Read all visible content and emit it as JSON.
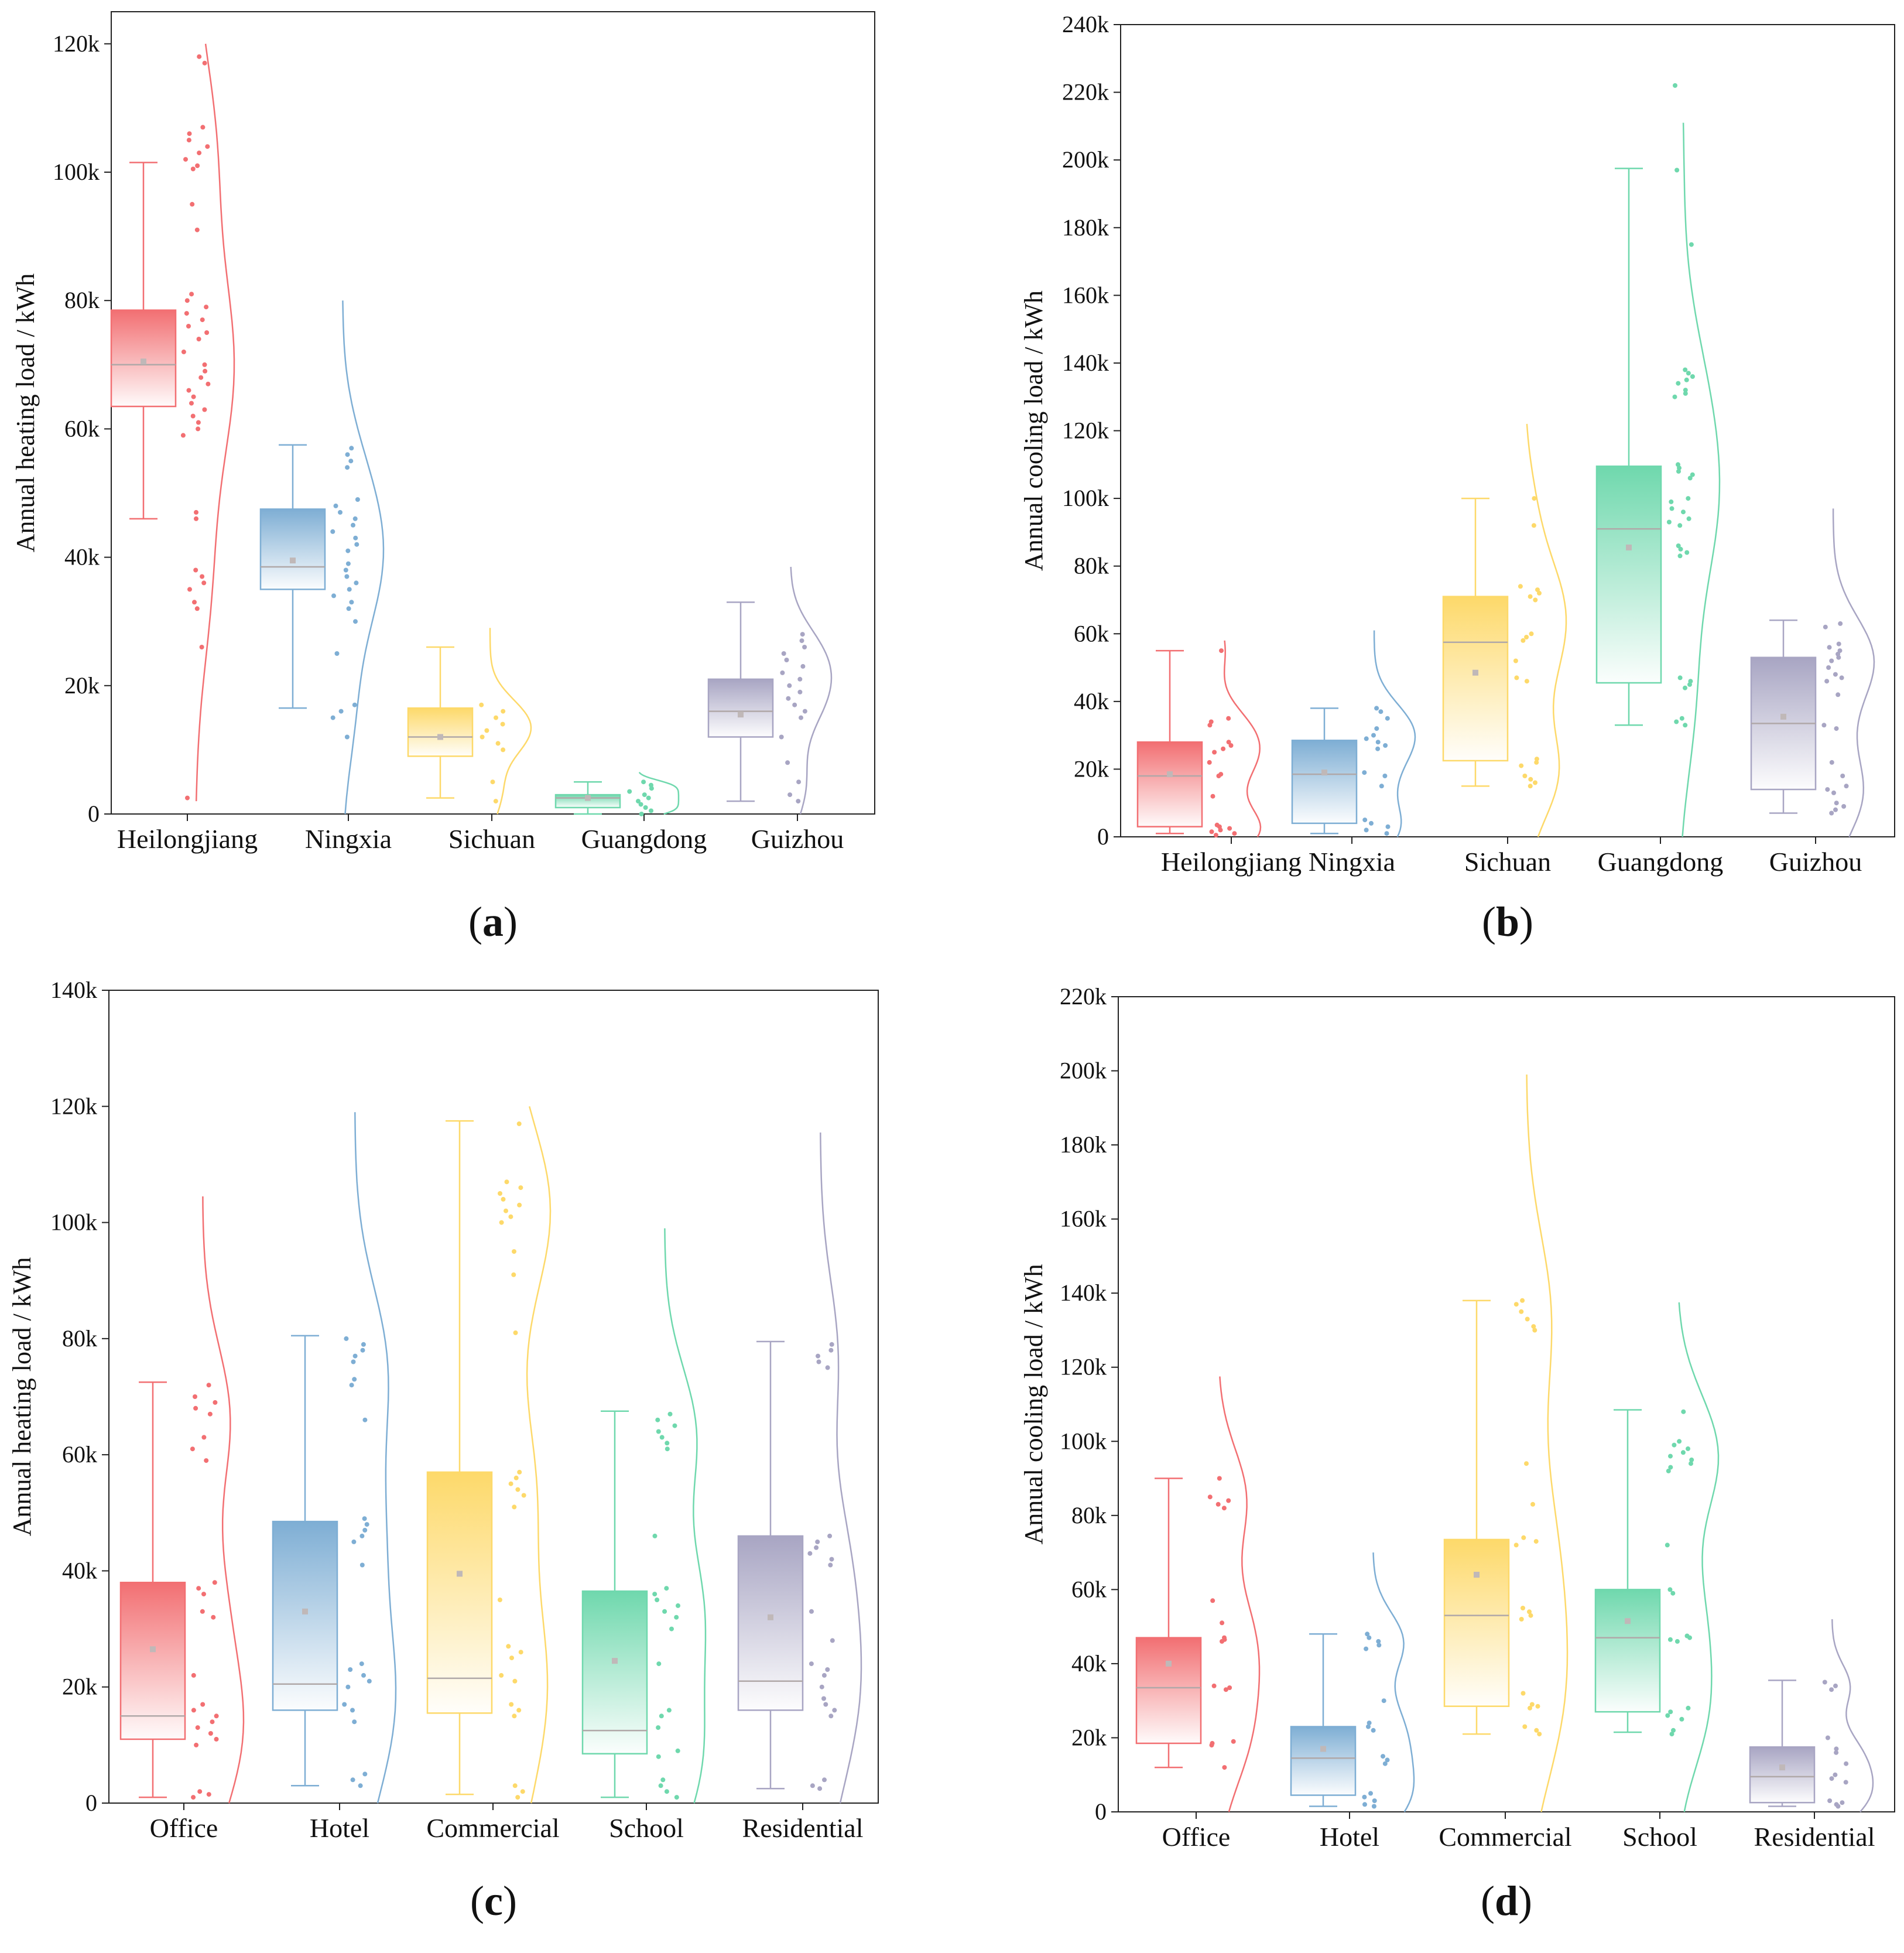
{
  "colors": [
    "#f26f72",
    "#7eaed4",
    "#fdd96a",
    "#6fd8ad",
    "#a8a5c3"
  ],
  "chart_data": [
    {
      "panel": "a",
      "label_prefix": "(",
      "label_letter": "a",
      "label_suffix": ")",
      "type": "raincloud-box",
      "ylabel": "Annual heating load / kWh",
      "ylim": [
        0,
        125000
      ],
      "yticks": [
        0,
        20000,
        40000,
        60000,
        80000,
        100000,
        120000
      ],
      "ytick_labels": [
        "0",
        "20k",
        "40k",
        "60k",
        "80k",
        "100k",
        "120k"
      ],
      "categories": [
        "Heilongjiang",
        "Ningxia",
        "Sichuan",
        "Guangdong",
        "Guizhou"
      ],
      "boxes": [
        {
          "min": 46000,
          "q1": 63500,
          "median": 70000,
          "mean": 70500,
          "q3": 78500,
          "max": 101500,
          "violin_min": 2000,
          "violin_max": 120000
        },
        {
          "min": 16500,
          "q1": 35000,
          "median": 38500,
          "mean": 39500,
          "q3": 47500,
          "max": 57500,
          "violin_min": 0,
          "violin_max": 80000
        },
        {
          "min": 2500,
          "q1": 9000,
          "median": 12000,
          "mean": 12000,
          "q3": 16500,
          "max": 26000,
          "violin_min": 0,
          "violin_max": 29000
        },
        {
          "min": 0,
          "q1": 1000,
          "median": 2500,
          "mean": 2500,
          "q3": 3000,
          "max": 5000,
          "violin_min": 0,
          "violin_max": 6500
        },
        {
          "min": 2000,
          "q1": 12000,
          "median": 16000,
          "mean": 15500,
          "q3": 21000,
          "max": 33000,
          "violin_min": 0,
          "violin_max": 38500
        }
      ],
      "points": [
        [
          2500,
          26000,
          32000,
          33000,
          35000,
          36000,
          37000,
          38000,
          46000,
          47000,
          59000,
          60000,
          61000,
          62000,
          63000,
          64000,
          65000,
          66000,
          67000,
          68000,
          69000,
          70000,
          72000,
          74000,
          75000,
          76000,
          77000,
          78000,
          79000,
          80000,
          81000,
          91000,
          95000,
          100500,
          101000,
          102000,
          103000,
          104000,
          105000,
          106000,
          107000,
          117000,
          118000
        ],
        [
          12000,
          15000,
          16000,
          17000,
          25000,
          30000,
          32000,
          33000,
          34000,
          35000,
          36000,
          37000,
          38000,
          39000,
          41000,
          42000,
          43000,
          44000,
          45000,
          46000,
          47000,
          48000,
          49000,
          54000,
          55000,
          56000,
          57000
        ],
        [
          2000,
          5000,
          10000,
          11000,
          12000,
          13000,
          14000,
          15000,
          16000,
          17000
        ],
        [
          0,
          500,
          1000,
          1500,
          2000,
          2500,
          3000,
          3500,
          4000,
          4500,
          5000
        ],
        [
          2000,
          3000,
          5000,
          8000,
          12000,
          15000,
          16000,
          17000,
          18000,
          19000,
          20000,
          21000,
          22000,
          23000,
          24000,
          25000,
          26000,
          27000,
          28000
        ]
      ]
    },
    {
      "panel": "b",
      "label_prefix": "(",
      "label_letter": "b",
      "label_suffix": ")",
      "type": "raincloud-box",
      "ylabel": "Annual cooling load / kWh",
      "ylim": [
        0,
        240000
      ],
      "yticks": [
        0,
        20000,
        40000,
        60000,
        80000,
        100000,
        120000,
        140000,
        160000,
        180000,
        200000,
        220000,
        240000
      ],
      "ytick_labels": [
        "0",
        "20k",
        "40k",
        "60k",
        "80k",
        "100k",
        "120k",
        "140k",
        "160k",
        "180k",
        "200k",
        "220k",
        "240k"
      ],
      "categories": [
        "Heilongjiang",
        "Ningxia",
        "Sichuan",
        "Guangdong",
        "Guizhou"
      ],
      "boxes": [
        {
          "min": 1000,
          "q1": 3000,
          "median": 18000,
          "mean": 18500,
          "q3": 28000,
          "max": 55000,
          "violin_min": 0,
          "violin_max": 58000
        },
        {
          "min": 1000,
          "q1": 4000,
          "median": 18500,
          "mean": 19000,
          "q3": 28500,
          "max": 38000,
          "violin_min": 0,
          "violin_max": 61000
        },
        {
          "min": 15000,
          "q1": 22500,
          "median": 57500,
          "mean": 48500,
          "q3": 71000,
          "max": 100000,
          "violin_min": 0,
          "violin_max": 122000
        },
        {
          "min": 33000,
          "q1": 45500,
          "median": 91000,
          "mean": 85500,
          "q3": 109500,
          "max": 197500,
          "violin_min": 0,
          "violin_max": 211000
        },
        {
          "min": 7000,
          "q1": 14000,
          "median": 33500,
          "mean": 35500,
          "q3": 53000,
          "max": 64000,
          "violin_min": 0,
          "violin_max": 97000
        }
      ],
      "points": [
        [
          500,
          1000,
          1500,
          2000,
          2500,
          3000,
          3500,
          12000,
          18000,
          18500,
          22000,
          25000,
          26000,
          27000,
          28000,
          33000,
          34000,
          35000,
          55000
        ],
        [
          1000,
          2000,
          3000,
          4000,
          5000,
          15000,
          18000,
          19000,
          26000,
          27000,
          28000,
          29000,
          30000,
          32000,
          35000,
          37000,
          38000
        ],
        [
          15000,
          16000,
          17000,
          18000,
          21000,
          22000,
          23000,
          46000,
          47000,
          52000,
          58000,
          59000,
          60000,
          70000,
          71000,
          72000,
          73000,
          74000,
          92000,
          100000
        ],
        [
          33000,
          34000,
          35000,
          44000,
          45000,
          46000,
          47000,
          83000,
          84000,
          85000,
          86000,
          92000,
          93000,
          94000,
          96000,
          97000,
          99000,
          100000,
          106000,
          107000,
          108000,
          109000,
          110000,
          130000,
          131000,
          132000,
          134000,
          135000,
          136000,
          137000,
          138000,
          175000,
          197000,
          222000
        ],
        [
          7000,
          8000,
          9000,
          10000,
          13000,
          14000,
          15000,
          18000,
          22000,
          32000,
          33000,
          42000,
          46000,
          47000,
          48000,
          50000,
          52000,
          53000,
          54000,
          55000,
          56000,
          57000,
          62000,
          63000
        ]
      ]
    },
    {
      "panel": "c",
      "label_prefix": "(",
      "label_letter": "c",
      "label_suffix": ")",
      "type": "raincloud-box",
      "ylabel": "Annual heating load / kWh",
      "ylim": [
        0,
        140000
      ],
      "yticks": [
        0,
        20000,
        40000,
        60000,
        80000,
        100000,
        120000,
        140000
      ],
      "ytick_labels": [
        "0",
        "20k",
        "40k",
        "60k",
        "80k",
        "100k",
        "120k",
        "140k"
      ],
      "categories": [
        "Office",
        "Hotel",
        "Commercial",
        "School",
        "Residential"
      ],
      "boxes": [
        {
          "min": 1000,
          "q1": 11000,
          "median": 15000,
          "mean": 26500,
          "q3": 38000,
          "max": 72500,
          "violin_min": 0,
          "violin_max": 104500
        },
        {
          "min": 3000,
          "q1": 16000,
          "median": 20500,
          "mean": 33000,
          "q3": 48500,
          "max": 80500,
          "violin_min": 0,
          "violin_max": 119000
        },
        {
          "min": 1500,
          "q1": 15500,
          "median": 21500,
          "mean": 39500,
          "q3": 57000,
          "max": 117500,
          "violin_min": 0,
          "violin_max": 120000
        },
        {
          "min": 1000,
          "q1": 8500,
          "median": 12500,
          "mean": 24500,
          "q3": 36500,
          "max": 67500,
          "violin_min": 0,
          "violin_max": 99000
        },
        {
          "min": 2500,
          "q1": 16000,
          "median": 21000,
          "mean": 32000,
          "q3": 46000,
          "max": 79500,
          "violin_min": 0,
          "violin_max": 115500
        }
      ],
      "points": [
        [
          1000,
          1500,
          2000,
          10000,
          11000,
          12000,
          13000,
          14000,
          15000,
          16000,
          17000,
          22000,
          32000,
          33000,
          36000,
          37000,
          38000,
          59000,
          61000,
          63000,
          67000,
          68000,
          69000,
          70000,
          72000
        ],
        [
          3000,
          4000,
          5000,
          14000,
          16000,
          17000,
          20000,
          21000,
          22000,
          23000,
          24000,
          41000,
          45000,
          46000,
          47000,
          48000,
          49000,
          66000,
          72000,
          73000,
          76000,
          77000,
          78000,
          79000,
          80000
        ],
        [
          1000,
          2000,
          3000,
          15000,
          16000,
          17000,
          21000,
          22000,
          25000,
          26000,
          27000,
          35000,
          51000,
          53000,
          54000,
          55000,
          56000,
          57000,
          81000,
          91000,
          95000,
          100000,
          101000,
          102000,
          103000,
          104000,
          105000,
          106000,
          107000,
          117000
        ],
        [
          1000,
          2000,
          3000,
          4000,
          8000,
          9000,
          13000,
          15000,
          16000,
          24000,
          30000,
          32000,
          33000,
          34000,
          35000,
          36000,
          37000,
          46000,
          61000,
          62000,
          63000,
          64000,
          65000,
          66000,
          67000
        ],
        [
          2500,
          3000,
          4000,
          15000,
          16000,
          17000,
          18000,
          20000,
          22000,
          23000,
          24000,
          28000,
          33000,
          41000,
          42000,
          43000,
          44000,
          45000,
          46000,
          75000,
          76000,
          77000,
          78000,
          79000
        ]
      ]
    },
    {
      "panel": "d",
      "label_prefix": "(",
      "label_letter": "d",
      "label_suffix": ")",
      "type": "raincloud-box",
      "ylabel": "Annual cooling load / kWh",
      "ylim": [
        0,
        220000
      ],
      "yticks": [
        0,
        20000,
        40000,
        60000,
        80000,
        100000,
        120000,
        140000,
        160000,
        180000,
        200000,
        220000
      ],
      "ytick_labels": [
        "0",
        "20k",
        "40k",
        "60k",
        "80k",
        "100k",
        "120k",
        "140k",
        "160k",
        "180k",
        "200k",
        "220k"
      ],
      "categories": [
        "Office",
        "Hotel",
        "Commercial",
        "School",
        "Residential"
      ],
      "boxes": [
        {
          "min": 12000,
          "q1": 18500,
          "median": 33500,
          "mean": 40000,
          "q3": 47000,
          "max": 90000,
          "violin_min": 0,
          "violin_max": 117500
        },
        {
          "min": 1500,
          "q1": 4500,
          "median": 14500,
          "mean": 17000,
          "q3": 23000,
          "max": 48000,
          "violin_min": 0,
          "violin_max": 70000
        },
        {
          "min": 21000,
          "q1": 28500,
          "median": 53000,
          "mean": 64000,
          "q3": 73500,
          "max": 138000,
          "violin_min": 0,
          "violin_max": 199000
        },
        {
          "min": 21500,
          "q1": 27000,
          "median": 47000,
          "mean": 51500,
          "q3": 60000,
          "max": 108500,
          "violin_min": 0,
          "violin_max": 137500
        },
        {
          "min": 1500,
          "q1": 2500,
          "median": 9500,
          "mean": 12000,
          "q3": 17500,
          "max": 35500,
          "violin_min": 0,
          "violin_max": 52000
        }
      ],
      "points": [
        [
          12000,
          18000,
          18500,
          19000,
          33000,
          33500,
          34000,
          46000,
          46500,
          47000,
          51000,
          57000,
          82000,
          83000,
          84000,
          85000,
          90000
        ],
        [
          1500,
          2000,
          3000,
          4000,
          5000,
          13000,
          14000,
          15000,
          22000,
          23000,
          24000,
          30000,
          44000,
          45000,
          46000,
          47000,
          48000
        ],
        [
          21000,
          22000,
          23000,
          28000,
          28500,
          29000,
          32000,
          52000,
          53000,
          54000,
          55000,
          72000,
          73000,
          74000,
          83000,
          94000,
          130000,
          131000,
          133000,
          135000,
          137000,
          138000
        ],
        [
          21000,
          22000,
          25000,
          26000,
          27000,
          28000,
          46000,
          46500,
          47000,
          47500,
          59000,
          60000,
          72000,
          92000,
          93000,
          94000,
          95000,
          96000,
          97000,
          98000,
          99000,
          100000,
          108000
        ],
        [
          1500,
          2000,
          2500,
          3000,
          8000,
          9000,
          10000,
          13000,
          16000,
          17000,
          20000,
          33000,
          34000,
          35000
        ]
      ]
    }
  ]
}
